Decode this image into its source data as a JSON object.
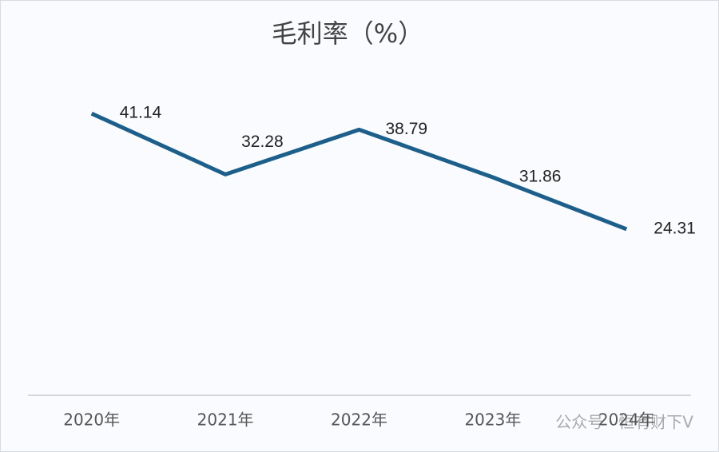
{
  "chart_data": {
    "type": "line",
    "title": "毛利率（%）",
    "categories": [
      "2020年",
      "2021年",
      "2022年",
      "2023年",
      "2024年"
    ],
    "series": [
      {
        "name": "毛利率",
        "color": "#1d5f8a",
        "values": [
          41.14,
          32.28,
          38.79,
          31.86,
          24.31
        ]
      }
    ],
    "ylim": [
      0,
      50
    ],
    "watermark": "公众号 · 恒有财下V"
  }
}
